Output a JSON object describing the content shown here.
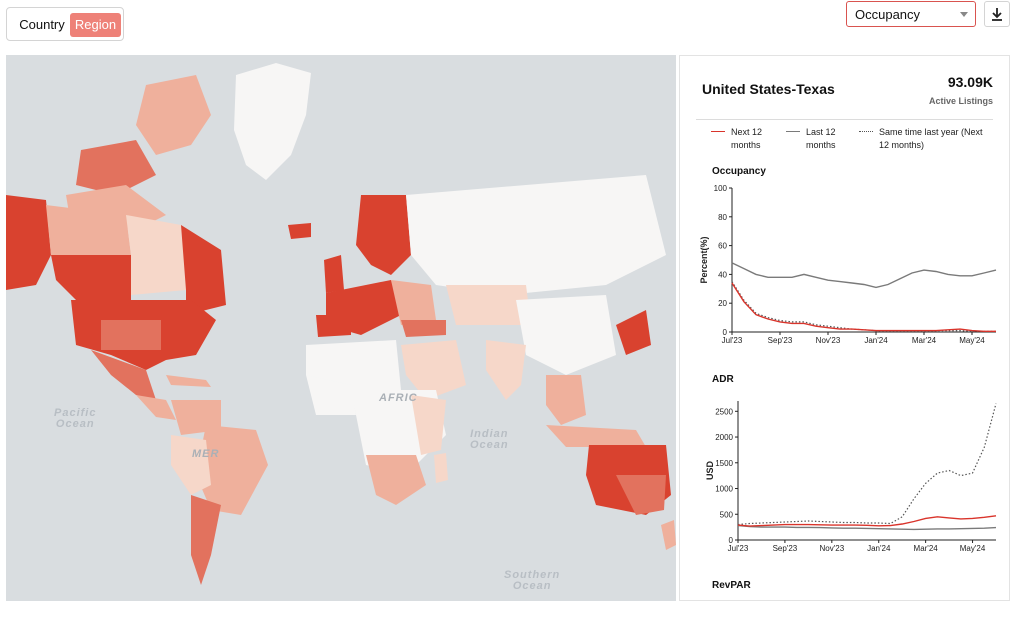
{
  "toolbar": {
    "toggle": {
      "country": "Country",
      "region": "Region",
      "selected": "Region"
    },
    "metric_select": {
      "value": "Occupancy"
    },
    "download": {
      "icon": "download-icon"
    }
  },
  "map": {
    "labels": {
      "pacific": "Pacific\nOcean",
      "africa": "AFRIC",
      "america": "MER",
      "indian": "Indian\nOcean",
      "southern": "Southern\nOcean"
    },
    "colors": {
      "land": "#f7f6f5",
      "dark": "#d9422f",
      "mid": "#e2725e",
      "light": "#efb09c",
      "pale": "#f6d7c9",
      "water": "#d9dde0"
    }
  },
  "panel": {
    "title": "United States-Texas",
    "active_listings_value": "93.09K",
    "active_listings_label": "Active Listings",
    "legend": [
      {
        "label": "Next 12 months",
        "style": "red-solid",
        "color": "#d9342b"
      },
      {
        "label": "Last 12 months",
        "style": "gray-solid",
        "color": "#7a7a7a"
      },
      {
        "label": "Same time last year (Next 12 months)",
        "style": "dotted",
        "color": "#555555"
      }
    ],
    "sections": {
      "occupancy": "Occupancy",
      "adr": "ADR",
      "revpar": "RevPAR"
    }
  },
  "chart_data": [
    {
      "type": "line",
      "title": "Occupancy",
      "ylabel": "Percent(%)",
      "xlabel": "",
      "ylim": [
        0,
        100
      ],
      "y_ticks": [
        0,
        20,
        40,
        60,
        80,
        100
      ],
      "x_tick_labels": [
        "Jul'23",
        "Sep'23",
        "Nov'23",
        "Jan'24",
        "Mar'24",
        "May'24"
      ],
      "x_ticks_at": [
        0,
        2,
        4,
        6,
        8,
        10
      ],
      "x": [
        0,
        0.5,
        1,
        1.5,
        2,
        2.5,
        3,
        3.5,
        4,
        4.5,
        5,
        5.5,
        6,
        6.5,
        7,
        7.5,
        8,
        8.5,
        9,
        9.5,
        10,
        10.5,
        11
      ],
      "series": [
        {
          "name": "Next 12 months",
          "color": "#d9342b",
          "style": "solid",
          "values": [
            34,
            21,
            12,
            9,
            7,
            6,
            6,
            4,
            3,
            2,
            2,
            1.5,
            1,
            1,
            1,
            1,
            1,
            1,
            1.5,
            2,
            1,
            0.5,
            0.5
          ]
        },
        {
          "name": "Last 12 months",
          "color": "#7a7a7a",
          "style": "solid",
          "values": [
            48,
            44,
            40,
            38,
            38,
            38,
            40,
            38,
            36,
            35,
            34,
            33,
            31,
            33,
            37,
            41,
            43,
            42,
            40,
            39,
            39,
            41,
            43
          ]
        },
        {
          "name": "Same time last year (Next 12 months)",
          "color": "#555555",
          "style": "dotted",
          "values": [
            35,
            22,
            13,
            10,
            8,
            7,
            7,
            5,
            4,
            3,
            2,
            1.5,
            1,
            1,
            1,
            1,
            1,
            1,
            1,
            1,
            0.5,
            0.5,
            0.5
          ]
        }
      ]
    },
    {
      "type": "line",
      "title": "ADR",
      "ylabel": "USD",
      "xlabel": "",
      "ylim": [
        0,
        2700
      ],
      "y_ticks": [
        0,
        500,
        1000,
        1500,
        2000,
        2500
      ],
      "x_tick_labels": [
        "Jul'23",
        "Sep'23",
        "Nov'23",
        "Jan'24",
        "Mar'24",
        "May'24"
      ],
      "x_ticks_at": [
        0,
        2,
        4,
        6,
        8,
        10
      ],
      "x": [
        0,
        0.5,
        1,
        1.5,
        2,
        2.5,
        3,
        3.5,
        4,
        4.5,
        5,
        5.5,
        6,
        6.5,
        7,
        7.5,
        8,
        8.5,
        9,
        9.5,
        10,
        10.5,
        11
      ],
      "series": [
        {
          "name": "Next 12 months",
          "color": "#d9342b",
          "style": "solid",
          "values": [
            290,
            270,
            280,
            290,
            300,
            300,
            300,
            295,
            290,
            290,
            290,
            285,
            275,
            280,
            310,
            360,
            420,
            450,
            430,
            410,
            420,
            440,
            470
          ]
        },
        {
          "name": "Last 12 months",
          "color": "#7a7a7a",
          "style": "solid",
          "values": [
            280,
            260,
            250,
            250,
            250,
            245,
            245,
            240,
            235,
            230,
            230,
            225,
            220,
            215,
            210,
            205,
            210,
            215,
            215,
            220,
            225,
            230,
            240
          ]
        },
        {
          "name": "Same time last year (Next 12 months)",
          "color": "#555555",
          "style": "dotted",
          "values": [
            300,
            320,
            330,
            340,
            350,
            360,
            370,
            360,
            350,
            340,
            340,
            330,
            330,
            320,
            450,
            800,
            1100,
            1300,
            1350,
            1250,
            1300,
            1800,
            2650
          ]
        }
      ]
    }
  ]
}
